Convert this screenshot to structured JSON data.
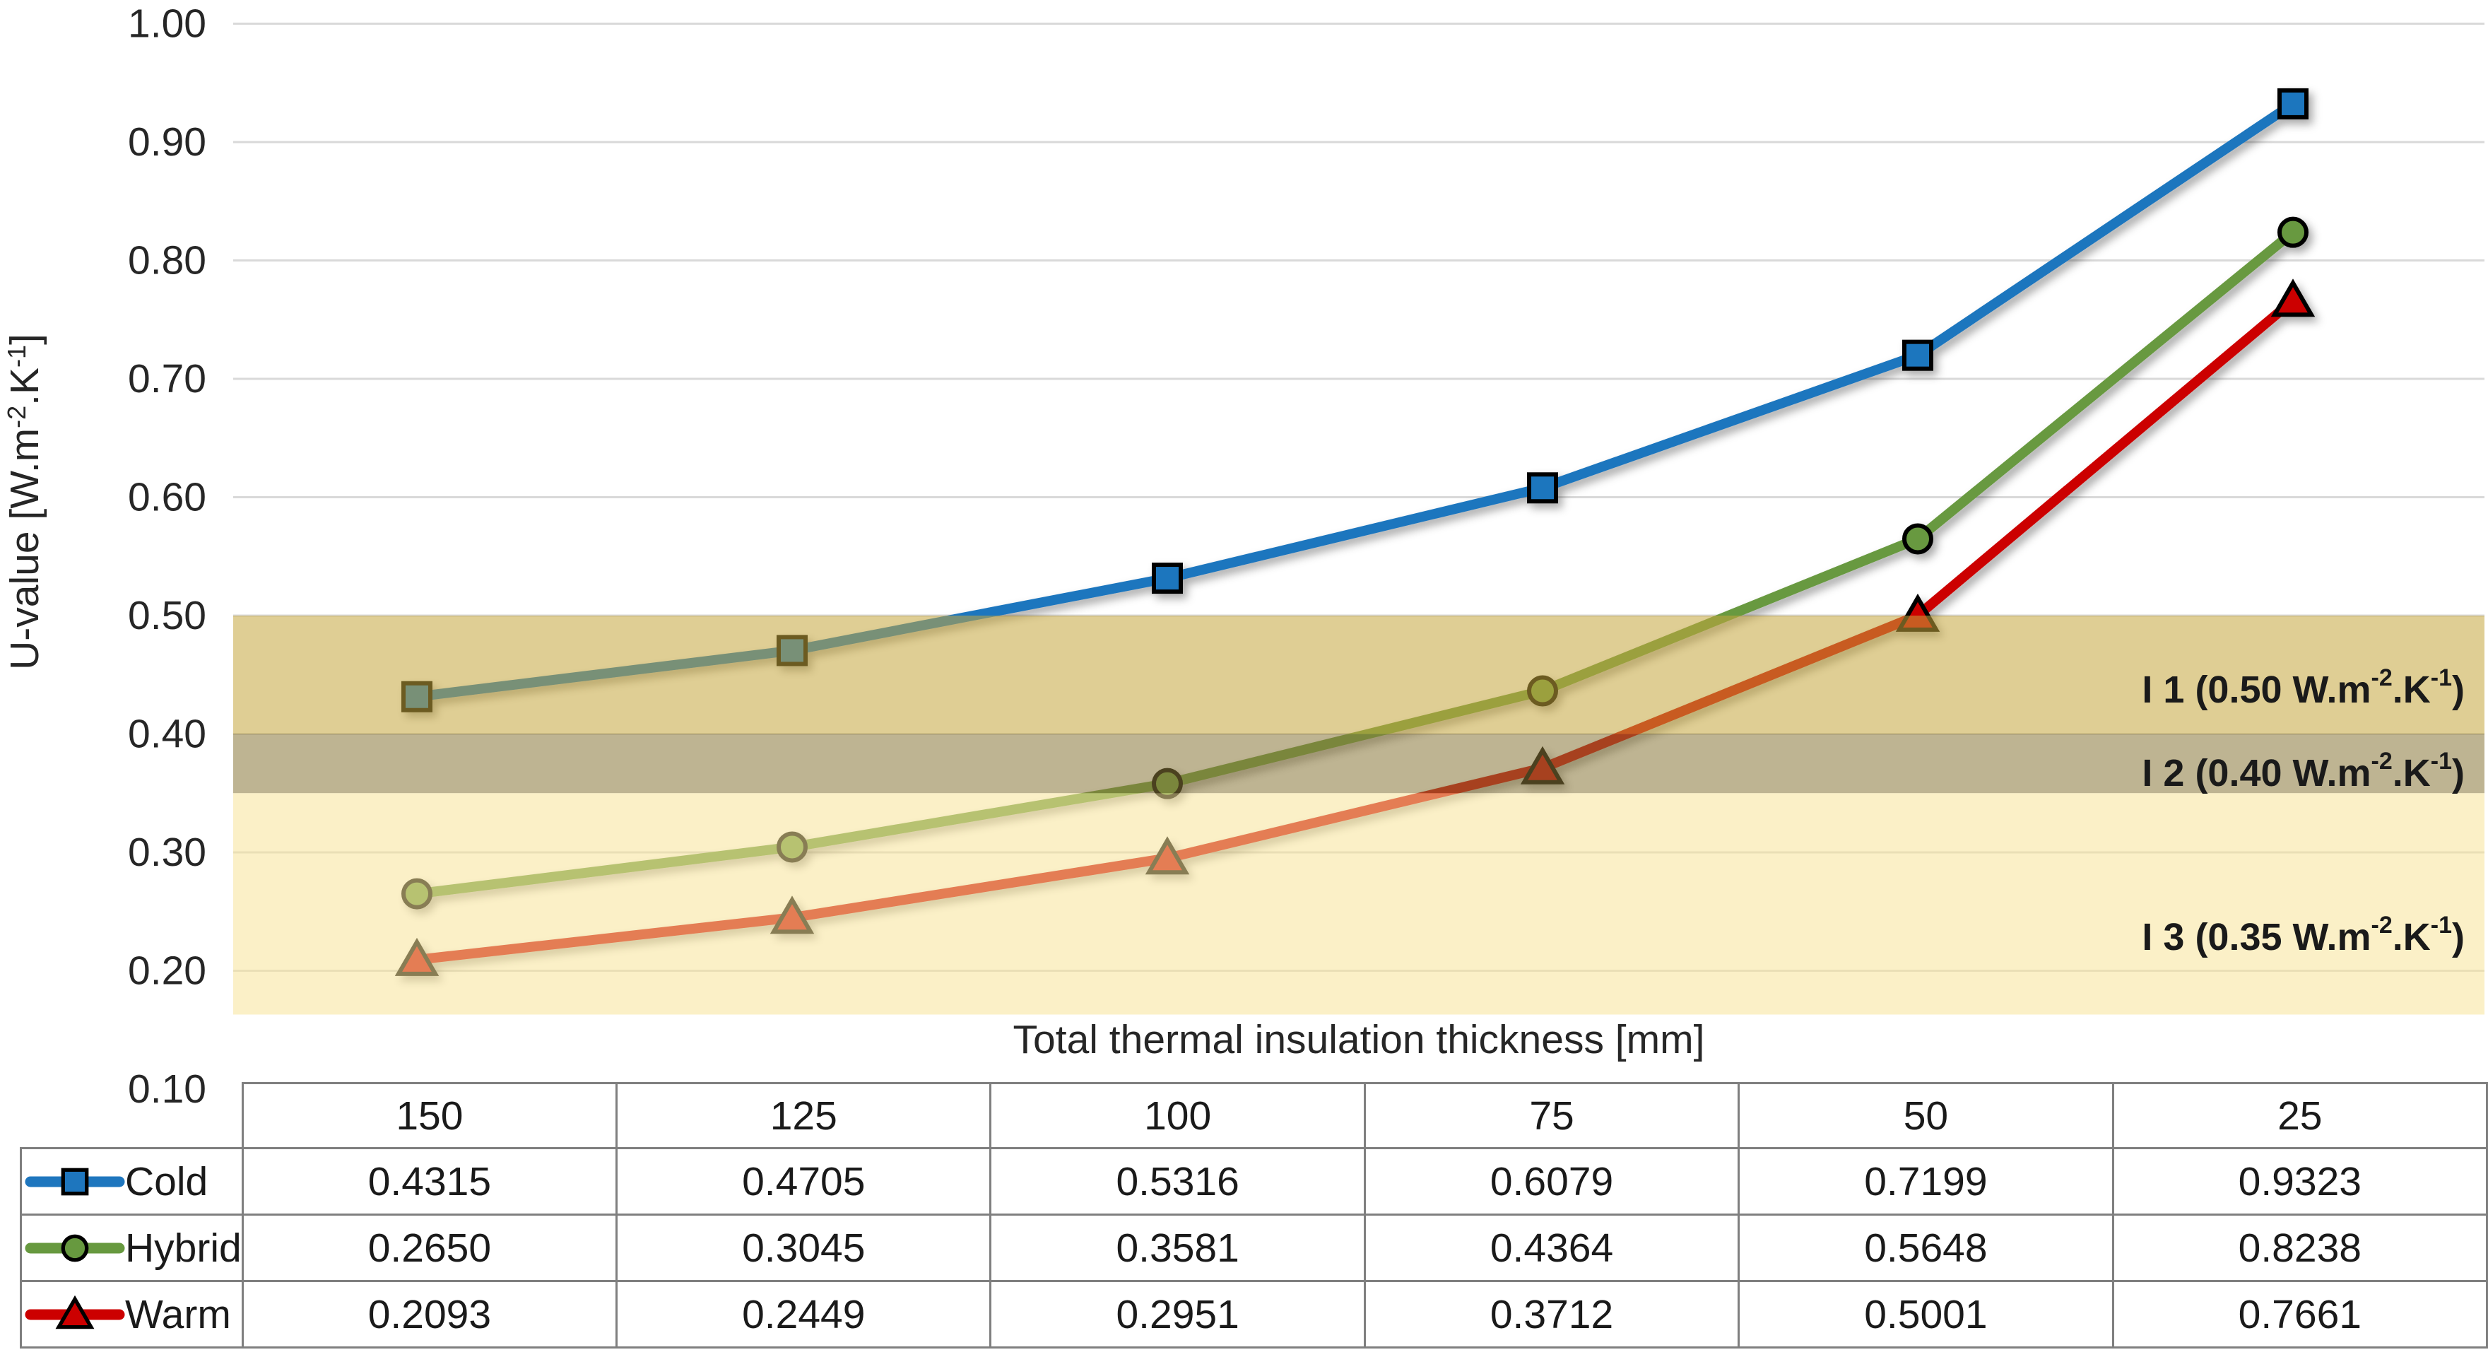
{
  "page": {
    "background": "#FFFFFF"
  },
  "chart_data": {
    "type": "line",
    "title": "",
    "xlabel": "Total thermal insulation thickness [mm]",
    "ylabel": "U-value [W.m⁻².K⁻¹]",
    "ylabel_parts": [
      [
        "t",
        "U-value  [W.m"
      ],
      [
        "s",
        "-2"
      ],
      [
        "t",
        ".K"
      ],
      [
        "s",
        "-1"
      ],
      [
        "t",
        "]"
      ]
    ],
    "categories": [
      150,
      125,
      100,
      75,
      50,
      25
    ],
    "categories_display": [
      "150",
      "125",
      "100",
      "75",
      "50",
      "25"
    ],
    "series": [
      {
        "name": "Cold",
        "marker": "square",
        "color": "#1E76BE",
        "values": [
          0.4315,
          0.4705,
          0.5316,
          0.6079,
          0.7199,
          0.9323
        ],
        "display": [
          "0.4315",
          "0.4705",
          "0.5316",
          "0.6079",
          "0.7199",
          "0.9323"
        ]
      },
      {
        "name": "Hybrid",
        "marker": "circle",
        "color": "#67993F",
        "values": [
          0.265,
          0.3045,
          0.3581,
          0.4364,
          0.5648,
          0.8238
        ],
        "display": [
          "0.2650",
          "0.3045",
          "0.3581",
          "0.4364",
          "0.5648",
          "0.8238"
        ]
      },
      {
        "name": "Warm",
        "marker": "triangle",
        "color": "#CC0000",
        "values": [
          0.2093,
          0.2449,
          0.2951,
          0.3712,
          0.5001,
          0.7661
        ],
        "display": [
          "0.2093",
          "0.2449",
          "0.2951",
          "0.3712",
          "0.5001",
          "0.7661"
        ]
      }
    ],
    "y_axis": {
      "min": 0.1,
      "max": 1.0,
      "tick_step": 0.1,
      "tick_labels": [
        "1.00",
        "0.90",
        "0.80",
        "0.70",
        "0.60",
        "0.50",
        "0.40",
        "0.30",
        "0.20",
        "0.10"
      ]
    },
    "bands": [
      {
        "name": "I 1",
        "label": "I 1 (0.50 W.m⁻².K⁻¹)",
        "label_parts": [
          [
            "t",
            "I 1 (0.50 W.m"
          ],
          [
            "s",
            "-2"
          ],
          [
            "t",
            ".K"
          ],
          [
            "s",
            "-1"
          ],
          [
            "t",
            ")"
          ]
        ],
        "from": 0.5,
        "to": 0.4,
        "fill": "#C5A63C",
        "opacity": 0.55
      },
      {
        "name": "I 2",
        "label": "I 2 (0.40 W.m⁻².K⁻¹)",
        "label_parts": [
          [
            "t",
            "I 2 (0.40 W.m"
          ],
          [
            "s",
            "-2"
          ],
          [
            "t",
            ".K"
          ],
          [
            "s",
            "-1"
          ],
          [
            "t",
            ")"
          ]
        ],
        "from": 0.4,
        "to": 0.35,
        "fill": "#897739",
        "opacity": 0.55
      },
      {
        "name": "I 3",
        "label": "I 3 (0.35 W.m⁻².K⁻¹)",
        "label_parts": [
          [
            "t",
            "I 3 (0.35 W.m"
          ],
          [
            "s",
            "-2"
          ],
          [
            "t",
            ".K"
          ],
          [
            "s",
            "-1"
          ],
          [
            "t",
            ")"
          ]
        ],
        "from": 0.35,
        "to": 0.163,
        "fill": "#F8E499",
        "opacity": 0.55
      }
    ],
    "grid": {
      "color": "#D9D9D9",
      "show": true
    },
    "legend_position": "table-left",
    "styles": {
      "tick_color": "#262626",
      "title_color": "#262626",
      "band_label_color": "#1A1A1A",
      "marker_outline": "#000000",
      "table_border": "#7F7F7F",
      "table_text": "#1A1A1A"
    }
  }
}
